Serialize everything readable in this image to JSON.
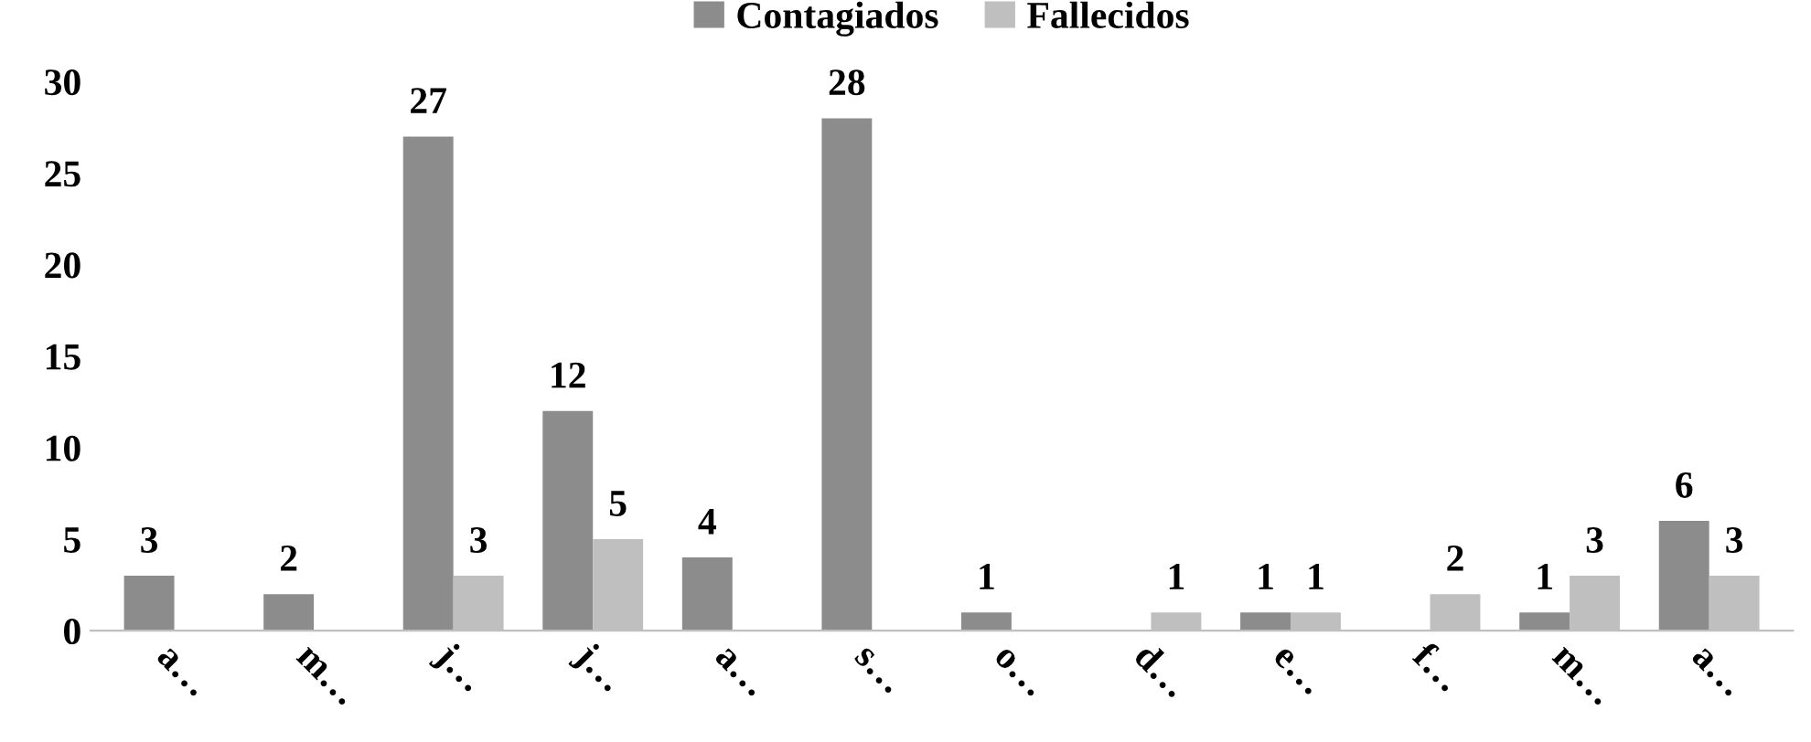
{
  "chart_data": {
    "type": "bar",
    "categories": [
      "a…",
      "m…",
      "j…",
      "j…",
      "a…",
      "s…",
      "o…",
      "d…",
      "e…",
      "f…",
      "m…",
      "a…"
    ],
    "series": [
      {
        "name": "Contagiados",
        "color": "#8c8c8c",
        "values": [
          3,
          2,
          27,
          12,
          4,
          28,
          1,
          null,
          1,
          null,
          1,
          6
        ]
      },
      {
        "name": "Fallecidos",
        "color": "#bfbfbf",
        "values": [
          null,
          null,
          3,
          5,
          null,
          null,
          null,
          1,
          1,
          2,
          3,
          3
        ]
      }
    ],
    "ylim": [
      0,
      30
    ],
    "yticks": [
      0,
      5,
      10,
      15,
      20,
      25,
      30
    ],
    "data_labels": true,
    "legend": "top",
    "grid": false
  }
}
